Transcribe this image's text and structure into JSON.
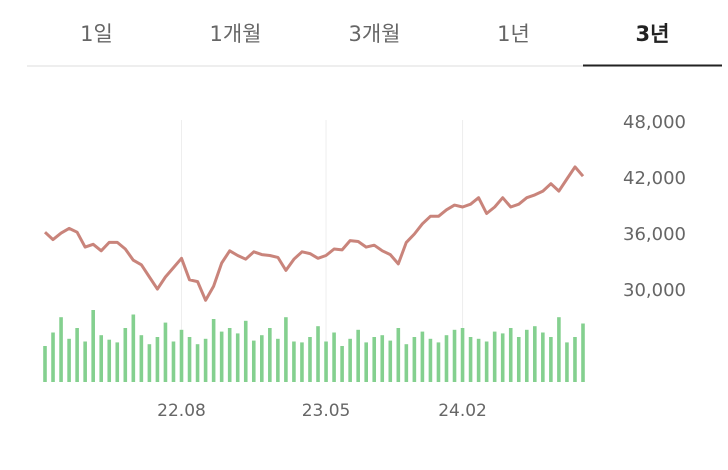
{
  "tabs": {
    "items": [
      "1일",
      "1개월",
      "3개월",
      "1년",
      "3년"
    ],
    "selected": 4
  },
  "chart_data": {
    "type": "line",
    "categories": [
      null,
      null,
      null,
      null,
      null,
      null,
      null,
      null,
      null,
      null,
      null,
      null,
      null,
      null,
      null,
      null,
      null,
      "22.08",
      null,
      null,
      null,
      null,
      null,
      null,
      null,
      null,
      null,
      null,
      null,
      null,
      null,
      null,
      null,
      null,
      null,
      "23.05",
      null,
      null,
      null,
      null,
      null,
      null,
      null,
      null,
      null,
      null,
      null,
      null,
      null,
      null,
      null,
      null,
      "24.02",
      null,
      null,
      null,
      null,
      null,
      null,
      null,
      null,
      null,
      null,
      null,
      null,
      null,
      null,
      null
    ],
    "series": [
      {
        "color": "#c9847b",
        "values": [
          36300,
          35500,
          36200,
          36700,
          36300,
          34700,
          35000,
          34300,
          35200,
          35200,
          34500,
          33300,
          32800,
          31500,
          30200,
          31500,
          32500,
          33500,
          31200,
          31000,
          29000,
          30500,
          33000,
          34300,
          33800,
          33400,
          34200,
          33900,
          33800,
          33600,
          32200,
          33400,
          34200,
          34000,
          33500,
          33800,
          34500,
          34400,
          35400,
          35300,
          34700,
          34900,
          34300,
          33900,
          32900,
          35200,
          36100,
          37200,
          38000,
          38000,
          38700,
          39200,
          39000,
          39300,
          40000,
          38300,
          39000,
          40000,
          39000,
          39300,
          40000,
          40300,
          40700,
          41500,
          40700,
          42000,
          43300,
          42300
        ]
      }
    ],
    "volume": {
      "color": "#84d08f",
      "values": [
        40,
        55,
        72,
        48,
        60,
        45,
        80,
        52,
        47,
        44,
        60,
        75,
        52,
        42,
        50,
        66,
        45,
        58,
        50,
        42,
        48,
        70,
        56,
        60,
        54,
        68,
        46,
        52,
        60,
        48,
        72,
        45,
        44,
        50,
        62,
        45,
        55,
        40,
        48,
        58,
        44,
        50,
        52,
        46,
        60,
        42,
        50,
        56,
        48,
        44,
        52,
        58,
        60,
        50,
        48,
        45,
        56,
        54,
        60,
        50,
        58,
        62,
        55,
        50,
        72,
        44,
        50,
        65
      ]
    },
    "ylim": [
      26000,
      48000
    ],
    "yticks": [
      {
        "value": 48000,
        "label": "48,000"
      },
      {
        "value": 42000,
        "label": "42,000"
      },
      {
        "value": 36000,
        "label": "36,000"
      },
      {
        "value": 30000,
        "label": "30,000"
      }
    ],
    "grid": true
  }
}
